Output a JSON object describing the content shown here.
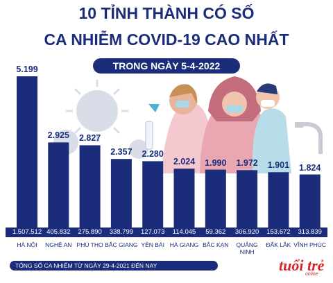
{
  "header": {
    "title_line1": "10 TỈNH THÀNH CÓ SỐ",
    "title_line2": "CA NHIỄM COVID-19 CAO NHẤT",
    "subtitle": "TRONG NGÀY 5-4-2022"
  },
  "chart_data": {
    "type": "bar",
    "categories": [
      "HÀ NỘI",
      "NGHỆ AN",
      "PHÚ THỌ",
      "BẮC GIANG",
      "YÊN BÁI",
      "HÀ GIANG",
      "BẮC KẠN",
      "QUẢNG NINH",
      "ĐẮK LẮK",
      "VĨNH PHÚC"
    ],
    "values": [
      5199,
      2925,
      2827,
      2357,
      2280,
      2024,
      1990,
      1972,
      1901,
      1824
    ],
    "value_labels": [
      "5.199",
      "2.925",
      "2.827",
      "2.357",
      "2.280",
      "2.024",
      "1.990",
      "1.972",
      "1.901",
      "1.824"
    ],
    "totals": [
      "1.507.512",
      "405.832",
      "275.890",
      "338.799",
      "127.073",
      "114.045",
      "59.362",
      "306.920",
      "153.672",
      "313.839"
    ],
    "ylim": [
      0,
      5199
    ],
    "colors": {
      "bar": "#1b2d7a",
      "title": "#1b2d7a",
      "accent": "#d8232a"
    }
  },
  "footer": {
    "note": "TỔNG SỐ CA NHIỄM TỪ NGÀY 29-4-2021 ĐẾN NAY"
  },
  "brand": {
    "logo_main": "tuổi trẻ",
    "logo_sub": "online"
  }
}
